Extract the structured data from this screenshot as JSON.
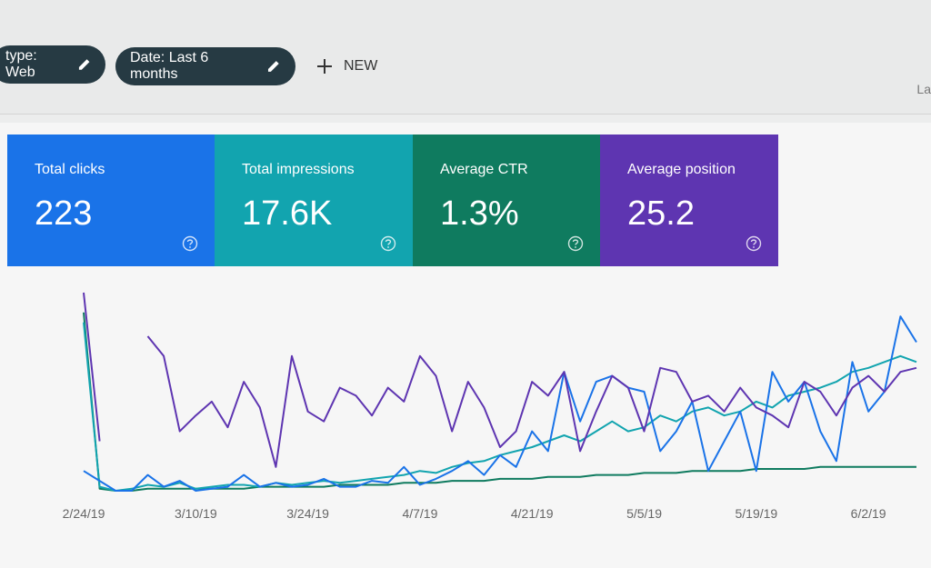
{
  "filters": [
    {
      "label": "type: Web"
    },
    {
      "label": "Date: Last 6 months"
    }
  ],
  "new_button": "NEW",
  "top_right": "La",
  "cards": [
    {
      "label": "Total clicks",
      "value": "223",
      "color": "#1a73e8"
    },
    {
      "label": "Total impressions",
      "value": "17.6K",
      "color": "#12a4af"
    },
    {
      "label": "Average CTR",
      "value": "1.3%",
      "color": "#0f7b5f"
    },
    {
      "label": "Average position",
      "value": "25.2",
      "color": "#5e35b1"
    }
  ],
  "chart_data": {
    "type": "line",
    "categories": [
      "2/24/19",
      null,
      null,
      null,
      null,
      null,
      null,
      "3/10/19",
      null,
      null,
      null,
      null,
      null,
      null,
      "3/24/19",
      null,
      null,
      null,
      null,
      null,
      null,
      "4/7/19",
      null,
      null,
      null,
      null,
      null,
      null,
      "4/21/19",
      null,
      null,
      null,
      null,
      null,
      null,
      "5/5/19",
      null,
      null,
      null,
      null,
      null,
      null,
      "5/19/19",
      null,
      null,
      null,
      null,
      null,
      null,
      "6/2/19",
      null,
      null,
      null
    ],
    "ylim": [
      0,
      100
    ],
    "series": [
      {
        "color": "#0f7b5f",
        "values": [
          90,
          1,
          0,
          0,
          1,
          1,
          1,
          1,
          1,
          1,
          1,
          2,
          2,
          2,
          2,
          2,
          3,
          3,
          3,
          3,
          4,
          4,
          4,
          5,
          5,
          5,
          6,
          6,
          6,
          7,
          7,
          7,
          8,
          8,
          8,
          9,
          9,
          9,
          10,
          10,
          10,
          10,
          11,
          11,
          11,
          11,
          12,
          12,
          12,
          12,
          12,
          12,
          12
        ]
      },
      {
        "color": "#12a4af",
        "values": [
          85,
          2,
          0,
          1,
          3,
          2,
          4,
          1,
          2,
          3,
          3,
          2,
          4,
          3,
          4,
          5,
          4,
          5,
          6,
          7,
          8,
          10,
          9,
          12,
          14,
          15,
          18,
          20,
          22,
          25,
          28,
          25,
          30,
          35,
          30,
          32,
          38,
          35,
          40,
          42,
          38,
          40,
          45,
          42,
          48,
          50,
          52,
          55,
          60,
          62,
          65,
          68,
          65
        ]
      },
      {
        "color": "#1a73e8",
        "values": [
          10,
          5,
          0,
          0,
          8,
          2,
          5,
          0,
          1,
          2,
          8,
          2,
          4,
          2,
          3,
          6,
          2,
          2,
          5,
          4,
          12,
          3,
          6,
          10,
          15,
          8,
          18,
          12,
          30,
          20,
          60,
          35,
          55,
          58,
          52,
          50,
          20,
          30,
          45,
          10,
          25,
          40,
          10,
          60,
          45,
          55,
          30,
          15,
          65,
          40,
          50,
          88,
          75
        ]
      },
      {
        "color": "#5e35b1",
        "values": [
          100,
          25,
          null,
          null,
          78,
          68,
          30,
          38,
          45,
          32,
          55,
          42,
          12,
          68,
          40,
          35,
          52,
          48,
          38,
          52,
          45,
          68,
          58,
          30,
          55,
          42,
          22,
          30,
          55,
          48,
          60,
          20,
          40,
          58,
          52,
          30,
          62,
          60,
          45,
          48,
          40,
          52,
          42,
          38,
          32,
          55,
          50,
          38,
          52,
          58,
          50,
          60,
          62
        ]
      }
    ]
  }
}
